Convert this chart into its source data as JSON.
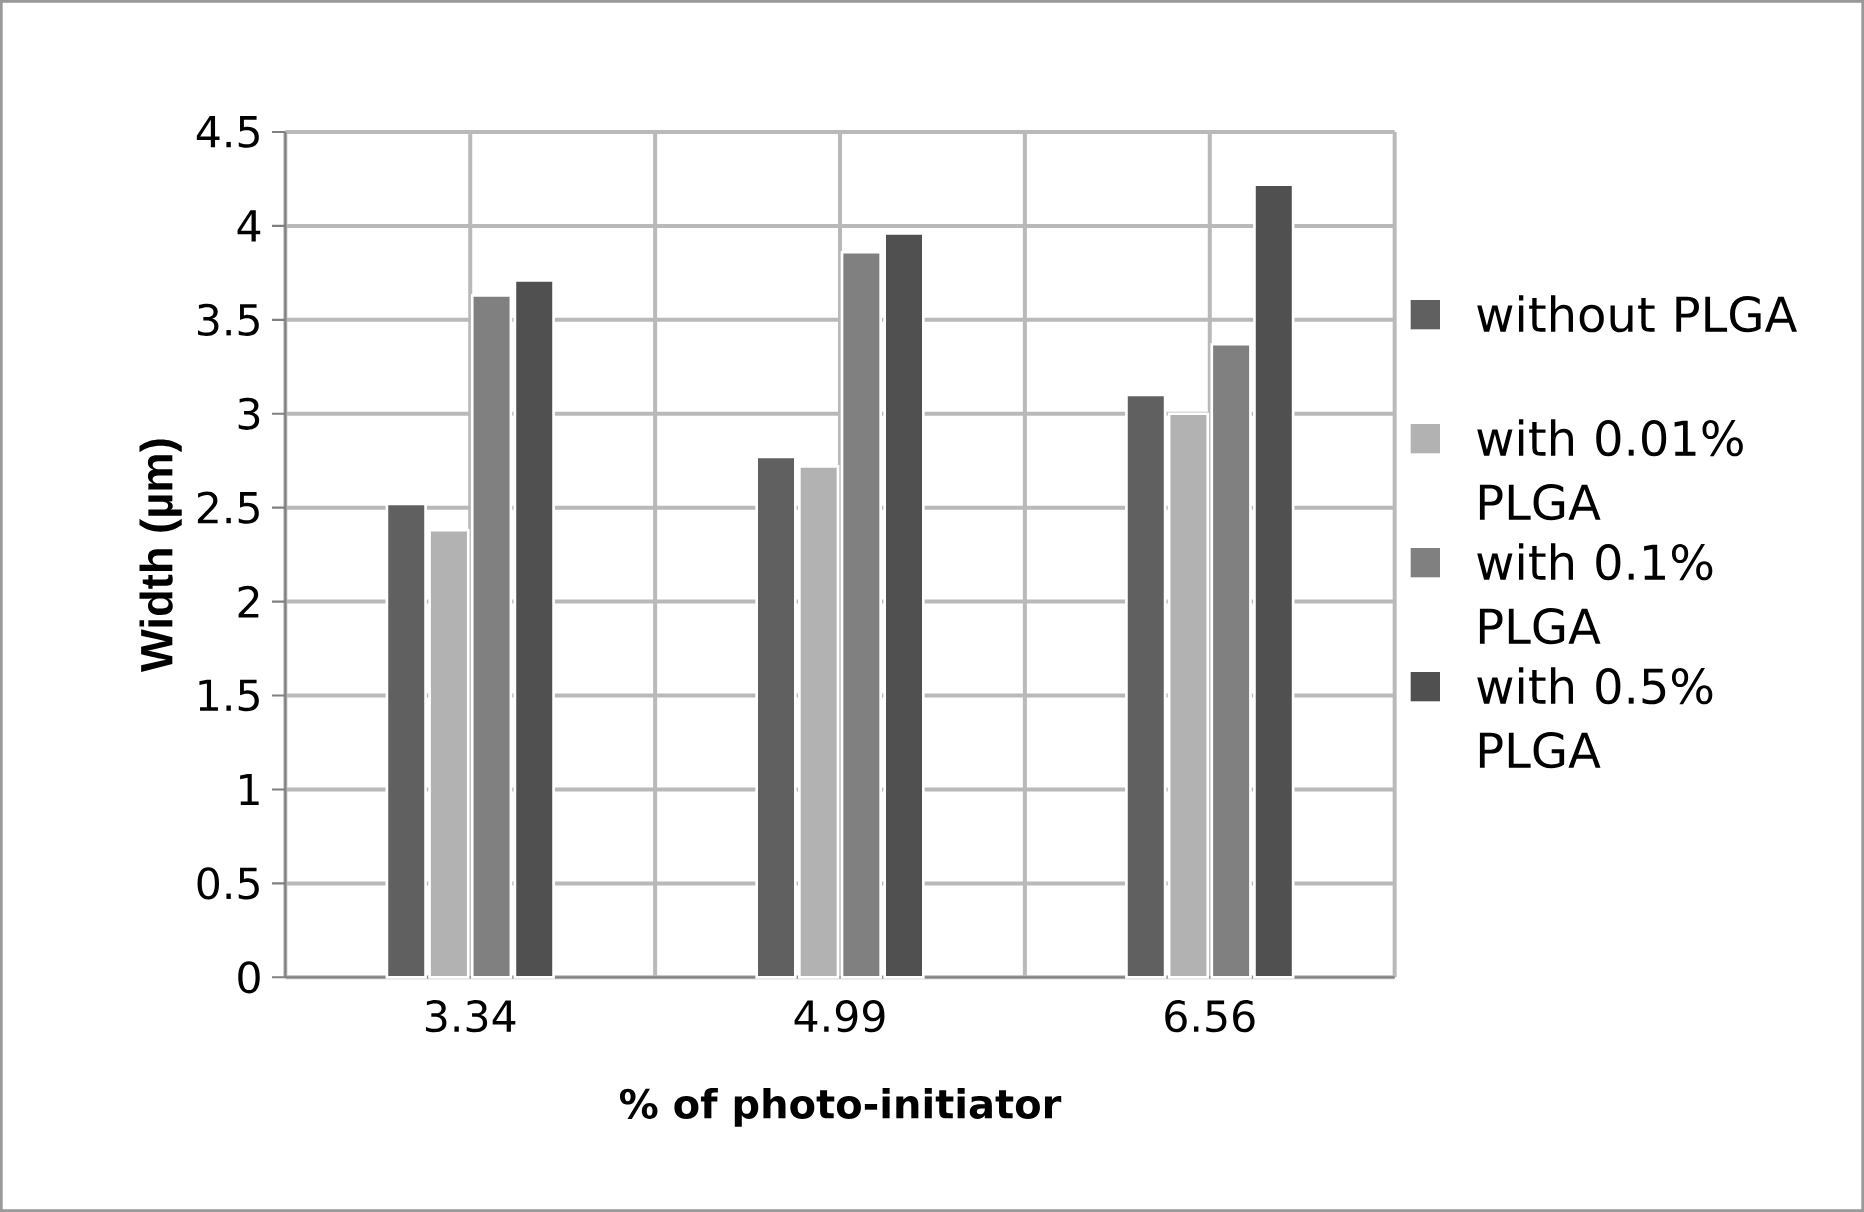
{
  "chart_data": {
    "type": "bar",
    "xlabel": "% of photo-initiator",
    "ylabel": "Width (µm)",
    "categories": [
      "3.34",
      "4.99",
      "6.56"
    ],
    "series": [
      {
        "name": "without PLGA",
        "color": "#606060",
        "values": [
          2.52,
          2.77,
          3.1
        ]
      },
      {
        "name": "with 0.01% PLGA",
        "color": "#b2b2b2",
        "values": [
          2.38,
          2.72,
          3.0
        ]
      },
      {
        "name": "with 0.1% PLGA",
        "color": "#808080",
        "values": [
          3.63,
          3.86,
          3.37
        ]
      },
      {
        "name": "with 0.5% PLGA",
        "color": "#505050",
        "values": [
          3.71,
          3.96,
          4.22
        ]
      }
    ],
    "ylim": [
      0,
      4.5
    ],
    "yticks": [
      0,
      0.5,
      1,
      1.5,
      2,
      2.5,
      3,
      3.5,
      4,
      4.5
    ],
    "grid": true,
    "legend": "right"
  }
}
